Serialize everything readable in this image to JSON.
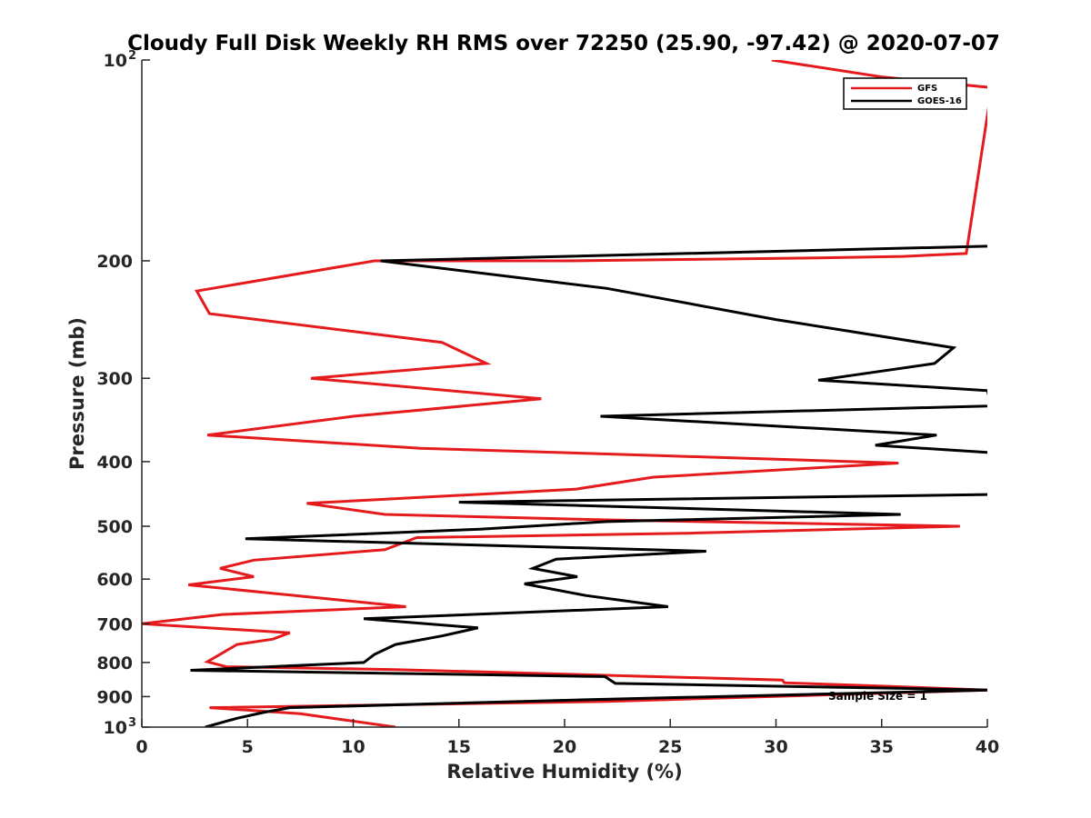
{
  "chart_data": {
    "type": "line",
    "title": "Cloudy Full Disk Weekly RH RMS over 72250 (25.90, -97.42) @ 2020-07-07",
    "xlabel": "Relative Humidity (%)",
    "ylabel": "Pressure (mb)",
    "xlim": [
      0,
      40
    ],
    "ylim": [
      100,
      1000
    ],
    "y_scale": "log",
    "y_reversed": true,
    "grid": false,
    "legend_position": "top-right",
    "x_ticks": [
      "0",
      "5",
      "10",
      "15",
      "20",
      "25",
      "30",
      "35",
      "40"
    ],
    "y_ticks": [
      {
        "value": 100,
        "base": "10",
        "exp": "2"
      },
      {
        "value": 200,
        "base": "200",
        "exp": ""
      },
      {
        "value": 300,
        "base": "300",
        "exp": ""
      },
      {
        "value": 400,
        "base": "400",
        "exp": ""
      },
      {
        "value": 500,
        "base": "500",
        "exp": ""
      },
      {
        "value": 600,
        "base": "600",
        "exp": ""
      },
      {
        "value": 700,
        "base": "700",
        "exp": ""
      },
      {
        "value": 800,
        "base": "800",
        "exp": ""
      },
      {
        "value": 900,
        "base": "900",
        "exp": ""
      },
      {
        "value": 1000,
        "base": "10",
        "exp": "3"
      }
    ],
    "annotation": "Sample Size = 1",
    "series": [
      {
        "name": "GFS",
        "color": "#e41a1c",
        "points": [
          [
            29.8,
            100
          ],
          [
            35.0,
            106
          ],
          [
            40.2,
            110
          ],
          [
            39.0,
            195
          ],
          [
            36.0,
            197
          ],
          [
            32.0,
            198
          ],
          [
            26.0,
            199
          ],
          [
            20.0,
            200
          ],
          [
            11.0,
            200
          ],
          [
            2.6,
            222
          ],
          [
            3.2,
            240
          ],
          [
            14.2,
            265
          ],
          [
            16.3,
            285
          ],
          [
            8.0,
            300
          ],
          [
            18.9,
            322
          ],
          [
            10.0,
            342
          ],
          [
            3.1,
            365
          ],
          [
            13.2,
            382
          ],
          [
            24.8,
            392
          ],
          [
            35.8,
            402
          ],
          [
            24.2,
            422
          ],
          [
            20.5,
            440
          ],
          [
            7.8,
            462
          ],
          [
            11.5,
            480
          ],
          [
            22.0,
            489
          ],
          [
            38.7,
            500
          ],
          [
            26.0,
            512
          ],
          [
            13.0,
            520
          ],
          [
            11.5,
            542
          ],
          [
            5.3,
            562
          ],
          [
            3.7,
            578
          ],
          [
            5.3,
            595
          ],
          [
            2.2,
            612
          ],
          [
            12.5,
            660
          ],
          [
            3.8,
            678
          ],
          [
            0.0,
            700
          ],
          [
            7.0,
            722
          ],
          [
            6.2,
            738
          ],
          [
            4.5,
            752
          ],
          [
            3.1,
            798
          ],
          [
            4.0,
            812
          ],
          [
            12.0,
            820
          ],
          [
            30.3,
            850
          ],
          [
            30.4,
            858
          ],
          [
            35.0,
            868
          ],
          [
            40.0,
            880
          ],
          [
            22.0,
            915
          ],
          [
            3.2,
            935
          ],
          [
            7.5,
            955
          ],
          [
            12.0,
            1000
          ]
        ]
      },
      {
        "name": "GOES-16",
        "color": "#000000",
        "points": [
          [
            40.5,
            190
          ],
          [
            11.3,
            200
          ],
          [
            22.0,
            220
          ],
          [
            30.0,
            245
          ],
          [
            38.4,
            270
          ],
          [
            37.5,
            285
          ],
          [
            32.0,
            302
          ],
          [
            40.0,
            313
          ],
          [
            40.2,
            330
          ],
          [
            21.7,
            342
          ],
          [
            37.6,
            365
          ],
          [
            34.7,
            378
          ],
          [
            40.3,
            388
          ],
          [
            40.2,
            448
          ],
          [
            15.0,
            460
          ],
          [
            35.9,
            480
          ],
          [
            22.0,
            492
          ],
          [
            16.0,
            505
          ],
          [
            4.9,
            522
          ],
          [
            26.7,
            545
          ],
          [
            19.6,
            560
          ],
          [
            18.5,
            578
          ],
          [
            20.6,
            595
          ],
          [
            18.1,
            610
          ],
          [
            21.0,
            635
          ],
          [
            24.9,
            660
          ],
          [
            10.5,
            688
          ],
          [
            15.9,
            710
          ],
          [
            14.2,
            730
          ],
          [
            12.0,
            752
          ],
          [
            11.0,
            778
          ],
          [
            10.5,
            800
          ],
          [
            2.3,
            822
          ],
          [
            21.9,
            840
          ],
          [
            22.4,
            860
          ],
          [
            36.0,
            875
          ],
          [
            40.0,
            880
          ],
          [
            21.0,
            910
          ],
          [
            7.0,
            935
          ],
          [
            5.8,
            950
          ],
          [
            4.5,
            970
          ],
          [
            3.0,
            1000
          ]
        ]
      }
    ]
  }
}
